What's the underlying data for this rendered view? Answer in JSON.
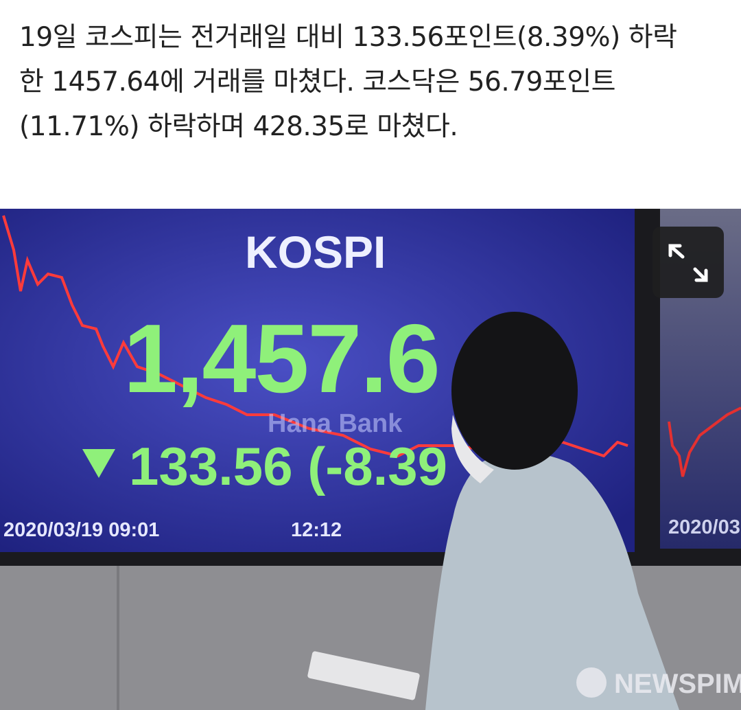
{
  "article": {
    "lines": [
      "19일 코스피는 전거래일 대비 133.56포인트(8.39%) 하락",
      "한 1457.64에 거래를 마쳤다. 코스닥은 56.79포인트",
      "(11.71%) 하락하며 428.35로 마쳤다."
    ]
  },
  "photo": {
    "board_title": "KOSPI",
    "index_value": "1,457.6",
    "change": "133.56 (-8.39",
    "bank_logo": "Hana Bank",
    "start_time": "2020/03/19 09:01",
    "current_time": "12:12",
    "right_board_date": "2020/03",
    "watermark": "NEWSPIM"
  },
  "controls": {
    "expand_icon": "expand-arrows-icon"
  },
  "colors": {
    "screen": "#2a2f9a",
    "index_green": "#8ff07a",
    "chart_red": "#ff3b3b"
  }
}
